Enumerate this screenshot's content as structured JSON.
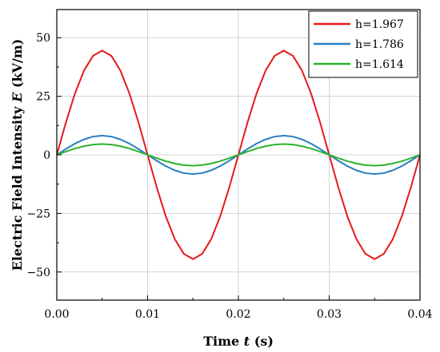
{
  "chart_data": {
    "type": "line",
    "title": "",
    "xlabel": "Time t (s)",
    "xlabel_parts": {
      "prefix": "Time ",
      "var": "t",
      "suffix": " (s)"
    },
    "ylabel": "Electric Field Intensity E (kV/m)",
    "ylabel_parts": {
      "prefix": "Electric Field Intensity ",
      "var": "E",
      "suffix": " (kV/m)"
    },
    "xlim": [
      0,
      0.04
    ],
    "ylim": [
      -62,
      62
    ],
    "x_ticks": [
      0.0,
      0.01,
      0.02,
      0.03,
      0.04
    ],
    "x_tick_labels": [
      "0.00",
      "0.01",
      "0.02",
      "0.03",
      "0.04"
    ],
    "y_ticks": [
      50,
      25,
      0,
      -25,
      -50
    ],
    "y_tick_labels": [
      "50",
      "25",
      "0",
      "−25",
      "−50"
    ],
    "grid": true,
    "legend_position": "top-right",
    "series": [
      {
        "name": "h=1.967",
        "color": "#e41a1c",
        "amplitude": 44.5,
        "frequency_hz": 50
      },
      {
        "name": "h=1.786",
        "color": "#2a7fc1",
        "amplitude": 8.2,
        "frequency_hz": 50
      },
      {
        "name": "h=1.614",
        "color": "#2bb32b",
        "amplitude": 4.6,
        "frequency_hz": 50
      }
    ],
    "x": [
      0.0,
      0.001,
      0.002,
      0.003,
      0.004,
      0.005,
      0.006,
      0.007,
      0.008,
      0.009,
      0.01,
      0.011,
      0.012,
      0.013,
      0.014,
      0.015,
      0.016,
      0.017,
      0.018,
      0.019,
      0.02,
      0.021,
      0.022,
      0.023,
      0.024,
      0.025,
      0.026,
      0.027,
      0.028,
      0.029,
      0.03,
      0.031,
      0.032,
      0.033,
      0.034,
      0.035,
      0.036,
      0.037,
      0.038,
      0.039,
      0.04
    ],
    "values": {
      "h=1.967": [
        0,
        13.8,
        26.2,
        36.0,
        42.3,
        44.5,
        42.3,
        36.0,
        26.2,
        13.8,
        0,
        -13.8,
        -26.2,
        -36.0,
        -42.3,
        -44.5,
        -42.3,
        -36.0,
        -26.2,
        -13.8,
        0,
        13.8,
        26.2,
        36.0,
        42.3,
        44.5,
        42.3,
        36.0,
        26.2,
        13.8,
        0,
        -13.8,
        -26.2,
        -36.0,
        -42.3,
        -44.5,
        -42.3,
        -36.0,
        -26.2,
        -13.8,
        0
      ],
      "h=1.786": [
        0,
        2.5,
        4.8,
        6.6,
        7.8,
        8.2,
        7.8,
        6.6,
        4.8,
        2.5,
        0,
        -2.5,
        -4.8,
        -6.6,
        -7.8,
        -8.2,
        -7.8,
        -6.6,
        -4.8,
        -2.5,
        0,
        2.5,
        4.8,
        6.6,
        7.8,
        8.2,
        7.8,
        6.6,
        4.8,
        2.5,
        0,
        -2.5,
        -4.8,
        -6.6,
        -7.8,
        -8.2,
        -7.8,
        -6.6,
        -4.8,
        -2.5,
        0
      ],
      "h=1.614": [
        0,
        1.4,
        2.7,
        3.7,
        4.4,
        4.6,
        4.4,
        3.7,
        2.7,
        1.4,
        0,
        -1.4,
        -2.7,
        -3.7,
        -4.4,
        -4.6,
        -4.4,
        -3.7,
        -2.7,
        -1.4,
        0,
        1.4,
        2.7,
        3.7,
        4.4,
        4.6,
        4.4,
        3.7,
        2.7,
        1.4,
        0,
        -1.4,
        -2.7,
        -3.7,
        -4.4,
        -4.6,
        -4.4,
        -3.7,
        -2.7,
        -1.4,
        0
      ]
    }
  }
}
